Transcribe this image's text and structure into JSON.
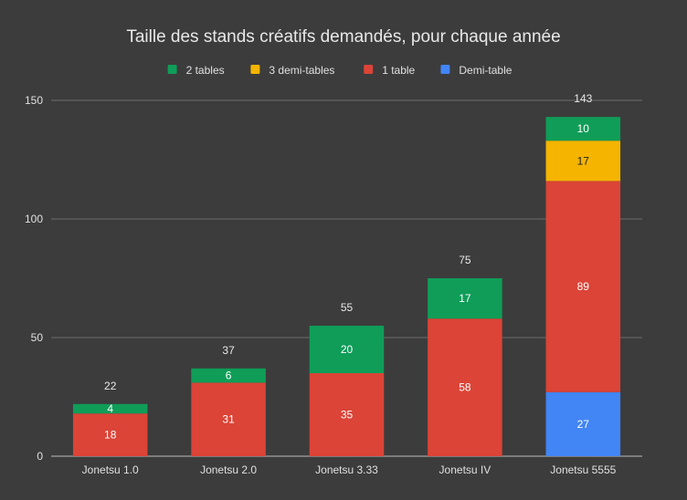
{
  "chart_data": {
    "type": "bar",
    "stacked": true,
    "title": "Taille des stands créatifs demandés, pour chaque année",
    "xlabel": "",
    "ylabel": "",
    "ylim": [
      0,
      150
    ],
    "yticks": [
      0,
      50,
      100,
      150
    ],
    "grid": true,
    "legend_position": "top",
    "categories": [
      "Jonetsu 1.0",
      "Jonetsu 2.0",
      "Jonetsu 3.33",
      "Jonetsu IV",
      "Jonetsu 5555"
    ],
    "totals": [
      22,
      37,
      55,
      75,
      143
    ],
    "legend_order": [
      "2 tables",
      "3 demi-tables",
      "1 table",
      "Demi-table"
    ],
    "series": [
      {
        "name": "Demi-table",
        "color": "#4285f4",
        "values": [
          0,
          0,
          0,
          0,
          27
        ]
      },
      {
        "name": "1 table",
        "color": "#db4437",
        "values": [
          18,
          31,
          35,
          58,
          89
        ]
      },
      {
        "name": "3 demi-tables",
        "color": "#f4b400",
        "values": [
          0,
          0,
          0,
          0,
          17
        ]
      },
      {
        "name": "2 tables",
        "color": "#0f9d58",
        "values": [
          4,
          6,
          20,
          17,
          10
        ]
      }
    ]
  }
}
